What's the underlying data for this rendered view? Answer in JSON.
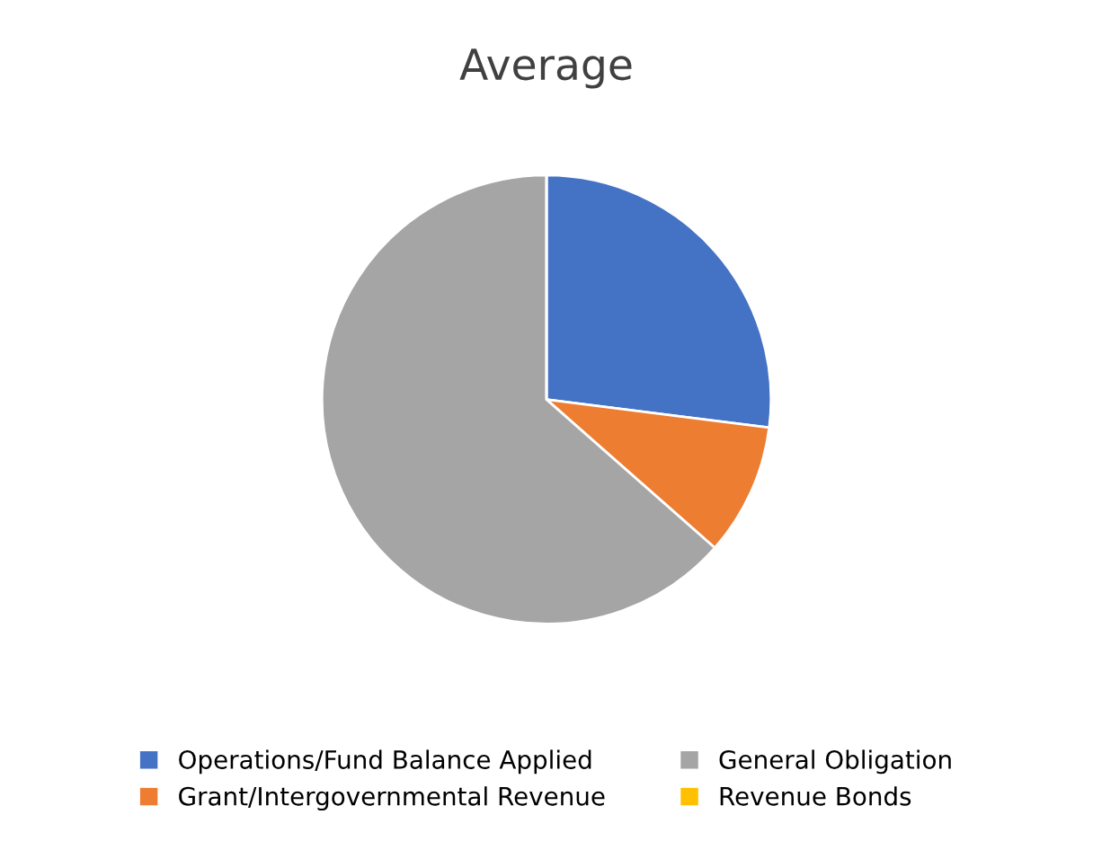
{
  "chart_data": {
    "type": "pie",
    "title": "Average",
    "categories": [
      "Operations/Fund Balance Applied",
      "Grant/Intergovernmental Revenue",
      "General Obligation",
      "Revenue Bonds"
    ],
    "values": [
      27,
      9.5,
      63.5,
      0
    ],
    "colors": [
      "#4472c4",
      "#ed7d31",
      "#a5a5a5",
      "#ffc000"
    ],
    "legend": "bottom"
  }
}
